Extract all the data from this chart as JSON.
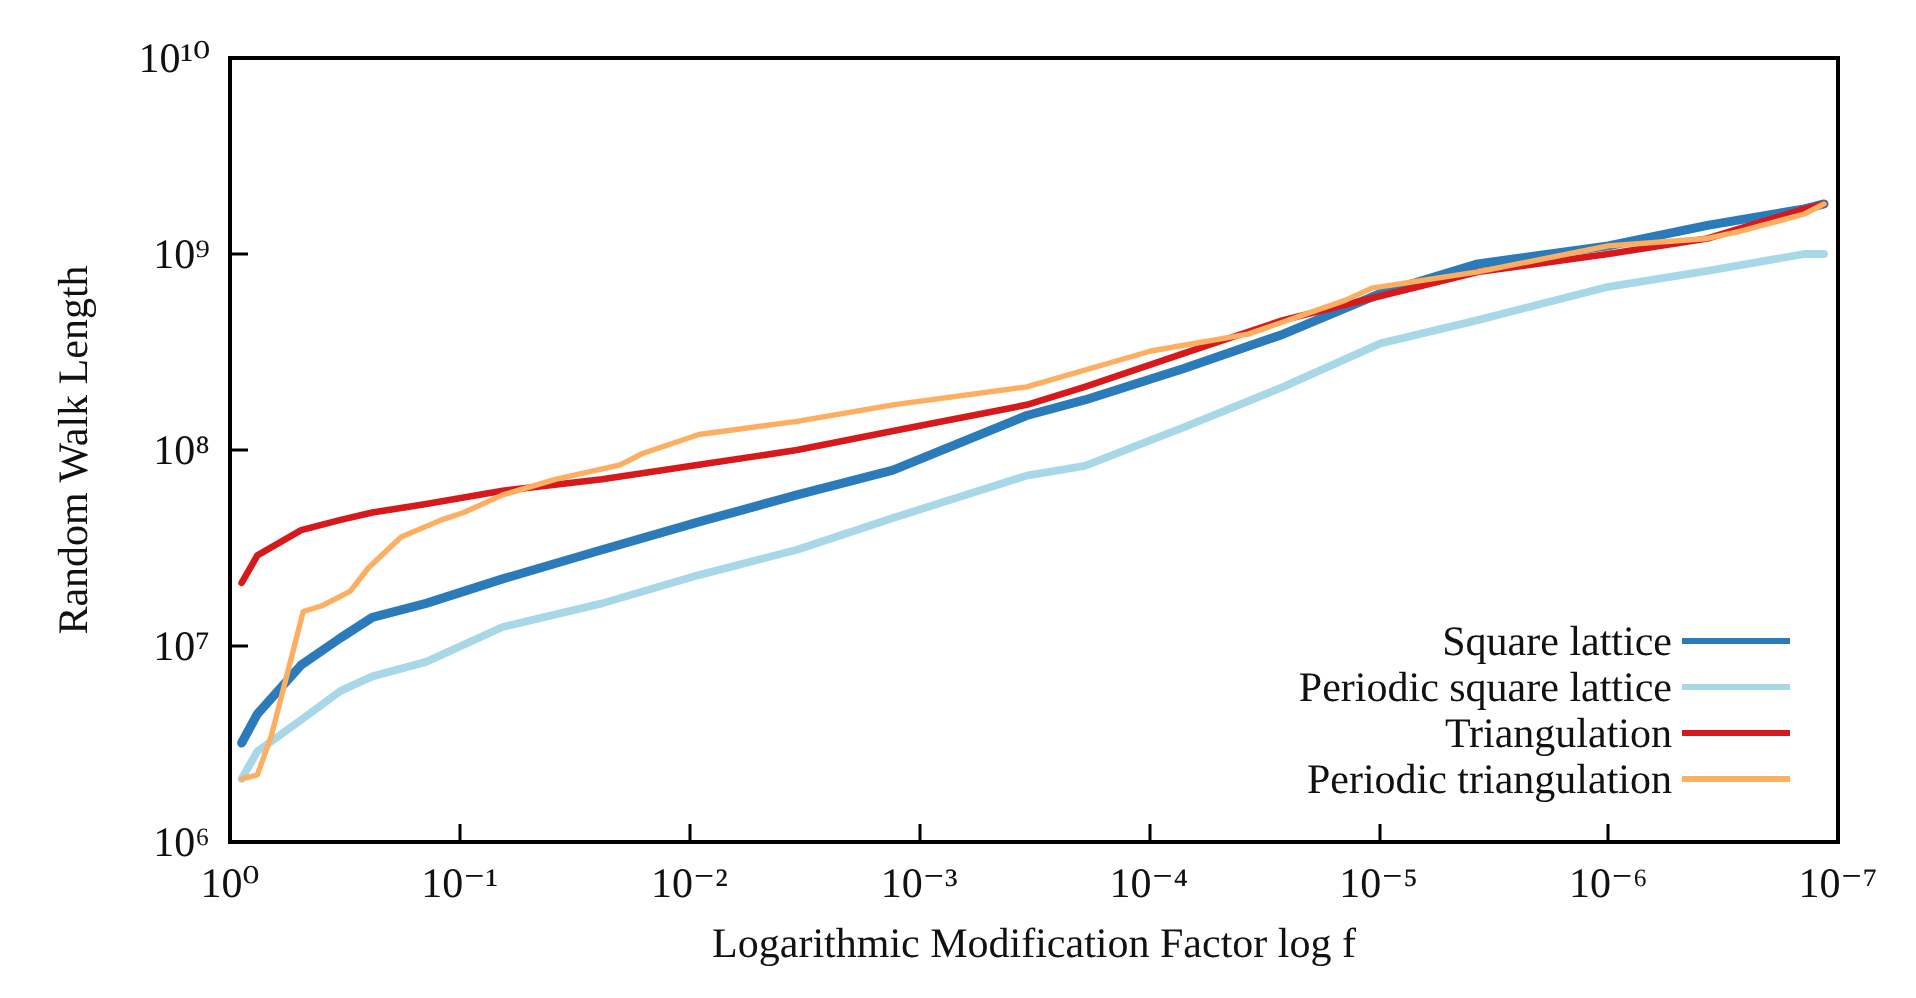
{
  "chart_data": {
    "type": "line",
    "xlabel": "Logarithmic Modification Factor log f",
    "ylabel": "Random Walk Length",
    "log": "xy",
    "grid": false,
    "legend": "bottom right",
    "marker": "none",
    "line_style": "solid",
    "xlim": [
      1,
      1e-07
    ],
    "ylim": [
      1000000.0,
      10000000000.0
    ],
    "xticks": [
      {
        "value": 1,
        "label": "10⁰"
      },
      {
        "value": 0.1,
        "label": "10⁻¹"
      },
      {
        "value": 0.01,
        "label": "10⁻²"
      },
      {
        "value": 0.001,
        "label": "10⁻³"
      },
      {
        "value": 0.0001,
        "label": "10⁻⁴"
      },
      {
        "value": 1e-05,
        "label": "10⁻⁵"
      },
      {
        "value": 1e-06,
        "label": "10⁻⁶"
      },
      {
        "value": 1e-07,
        "label": "10⁻⁷"
      }
    ],
    "yticks": [
      {
        "value": 1000000.0,
        "label": "10⁶"
      },
      {
        "value": 10000000.0,
        "label": "10⁷"
      },
      {
        "value": 100000000.0,
        "label": "10⁸"
      },
      {
        "value": 1000000000.0,
        "label": "10⁹"
      },
      {
        "value": 10000000000.0,
        "label": "10¹⁰"
      }
    ],
    "x": [
      0.89,
      0.76,
      0.49,
      0.33,
      0.24,
      0.14,
      0.065,
      0.024,
      0.0091,
      0.0034,
      0.0013,
      0.00034,
      0.00019,
      7.1e-05,
      2.6e-05,
      9.8e-06,
      3.7e-06,
      1e-06,
      3.7e-07,
      1.4e-07,
      1.15e-07
    ],
    "series": [
      {
        "name": "Square lattice",
        "color": "#2b7bba",
        "values": [
          3200000.0,
          4500000.0,
          8000000.0,
          11000000.0,
          14000000.0,
          16500000.0,
          22000000.0,
          31000000.0,
          43000000.0,
          59000000.0,
          79000000.0,
          150000000.0,
          180000000.0,
          260000000.0,
          390000000.0,
          630000000.0,
          890000000.0,
          1100000000.0,
          1400000000.0,
          1700000000.0,
          1800000000.0
        ]
      },
      {
        "name": "Periodic square lattice",
        "color": "#a8d8e8",
        "values": [
          2100000.0,
          2900000.0,
          4200000.0,
          5900000.0,
          7000000.0,
          8300000.0,
          12500000.0,
          16500000.0,
          23000000.0,
          31000000.0,
          45000000.0,
          74000000.0,
          83000000.0,
          130000000.0,
          210000000.0,
          350000000.0,
          460000000.0,
          680000000.0,
          820000000.0,
          1000000000.0,
          1000000000.0
        ]
      },
      {
        "name": "Triangulation",
        "color": "#d7191c",
        "values": [
          21000000.0,
          29000000.0,
          39000000.0,
          44000000.0,
          48000000.0,
          53000000.0,
          62000000.0,
          71000000.0,
          84000000.0,
          100000000.0,
          125000000.0,
          170000000.0,
          210000000.0,
          310000000.0,
          460000000.0,
          610000000.0,
          810000000.0,
          1000000000.0,
          1200000000.0,
          1700000000.0,
          1800000000.0
        ]
      },
      {
        "name": "Periodic triangulation",
        "color": "#fdae61",
        "x": [
          0.89,
          0.76,
          0.66,
          0.48,
          0.4,
          0.3,
          0.25,
          0.18,
          0.12,
          0.096,
          0.065,
          0.038,
          0.02,
          0.016,
          0.0091,
          0.0034,
          0.0013,
          0.00034,
          9.8e-05,
          3.7e-05,
          1.4e-05,
          1.07e-05,
          3.7e-06,
          1e-06,
          3.7e-07,
          2.7e-07,
          1.4e-07,
          1.15e-07
        ],
        "values": [
          2100000.0,
          2200000.0,
          3500000.0,
          15000000.0,
          16000000.0,
          19000000.0,
          25000000.0,
          36000000.0,
          44000000.0,
          48000000.0,
          59000000.0,
          71000000.0,
          84000000.0,
          96000000.0,
          120000000.0,
          140000000.0,
          170000000.0,
          210000000.0,
          320000000.0,
          390000000.0,
          580000000.0,
          670000000.0,
          810000000.0,
          1100000000.0,
          1200000000.0,
          1300000000.0,
          1600000000.0,
          1800000000.0
        ]
      }
    ]
  }
}
